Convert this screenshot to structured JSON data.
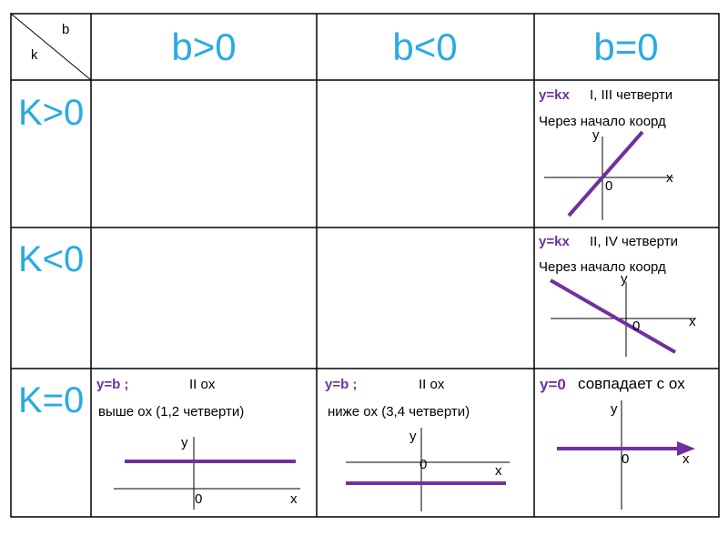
{
  "table": {
    "corner": {
      "column_label": "b",
      "row_label": "k"
    },
    "columns": [
      "b>0",
      "b<0",
      "b=0"
    ],
    "rows": [
      {
        "label": "K>0",
        "b_zero": {
          "formula": "y=kx",
          "quarters": "I, III  четверти",
          "note": "Через начало коорд",
          "graph": {
            "y": "y",
            "x": "x",
            "origin": "0"
          }
        }
      },
      {
        "label": "K<0",
        "b_zero": {
          "formula": "y=kx",
          "quarters": "II, IV  четверти",
          "note": "Через начало коорд",
          "graph": {
            "y": "y",
            "x": "x",
            "origin": "0"
          }
        }
      },
      {
        "label": "K=0",
        "b_positive": {
          "formula": "y=b ;",
          "parallel": "II ox",
          "note": "выше  ox (1,2 четверти)",
          "graph": {
            "y": "y",
            "x": "x",
            "origin": "0"
          }
        },
        "b_negative": {
          "formula": "y=b ;",
          "parallel": "II ox",
          "note": "ниже  ox (3,4 четверти)",
          "graph": {
            "y": "y",
            "x": "x",
            "origin": "0"
          }
        },
        "b_zero": {
          "formula": "y=0",
          "note": "совпадает с ox",
          "graph": {
            "y": "y",
            "x": "x",
            "origin": "0"
          }
        }
      }
    ]
  }
}
